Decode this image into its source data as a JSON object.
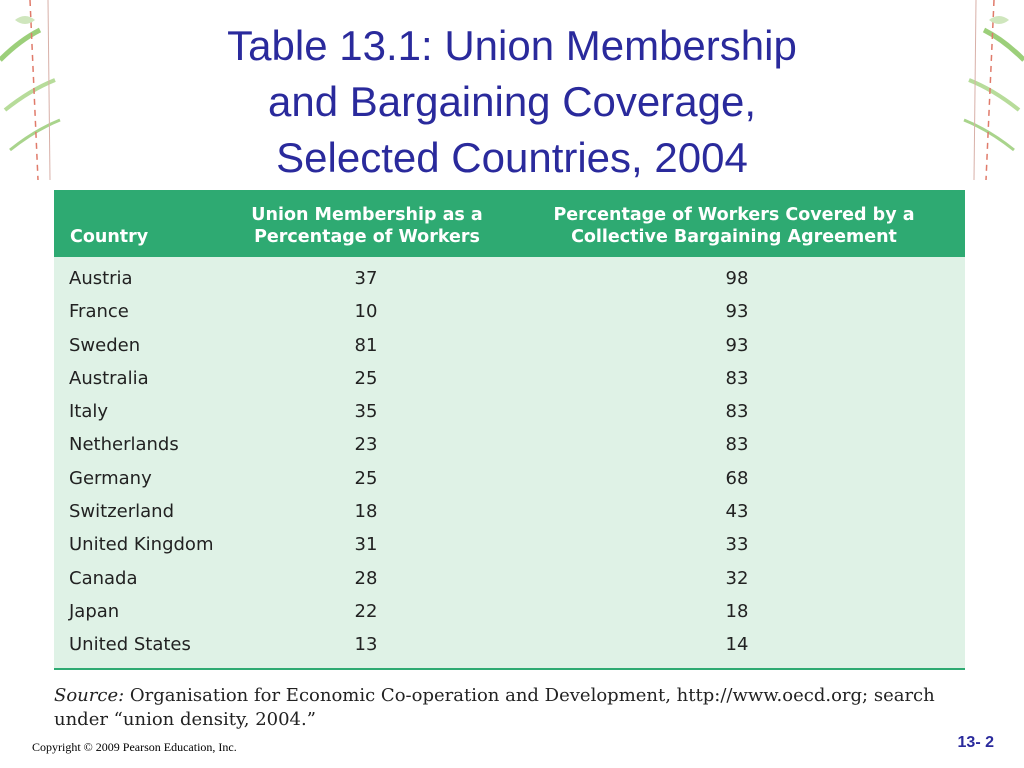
{
  "title": {
    "line1": "Table 13.1: Union Membership",
    "line2": "and Bargaining Coverage,",
    "line3": "Selected Countries, 2004"
  },
  "table": {
    "headers": {
      "country": "Country",
      "union_line1": "Union Membership as a",
      "union_line2": "Percentage of Workers",
      "cover_line1": "Percentage of Workers Covered by a",
      "cover_line2": "Collective Bargaining Agreement"
    },
    "rows": [
      {
        "country": "Austria",
        "union": "37",
        "coverage": "98"
      },
      {
        "country": "France",
        "union": "10",
        "coverage": "93"
      },
      {
        "country": "Sweden",
        "union": "81",
        "coverage": "93"
      },
      {
        "country": "Australia",
        "union": "25",
        "coverage": "83"
      },
      {
        "country": "Italy",
        "union": "35",
        "coverage": "83"
      },
      {
        "country": "Netherlands",
        "union": "23",
        "coverage": "83"
      },
      {
        "country": "Germany",
        "union": "25",
        "coverage": "68"
      },
      {
        "country": "Switzerland",
        "union": "18",
        "coverage": "43"
      },
      {
        "country": "United Kingdom",
        "union": "31",
        "coverage": "33"
      },
      {
        "country": "Canada",
        "union": "28",
        "coverage": "32"
      },
      {
        "country": "Japan",
        "union": "22",
        "coverage": "18"
      },
      {
        "country": "United States",
        "union": "13",
        "coverage": "14"
      }
    ]
  },
  "source": {
    "label": "Source:",
    "text": "Organisation for Economic Co-operation and Development, http://www.oecd.org; search under “union density, 2004.”"
  },
  "footer": {
    "copyright": "Copyright © 2009 Pearson Education, Inc.",
    "page": "13- 2"
  },
  "colors": {
    "title": "#2a2a9c",
    "header_bg": "#2eaa72",
    "table_bg": "#dff2e6"
  }
}
